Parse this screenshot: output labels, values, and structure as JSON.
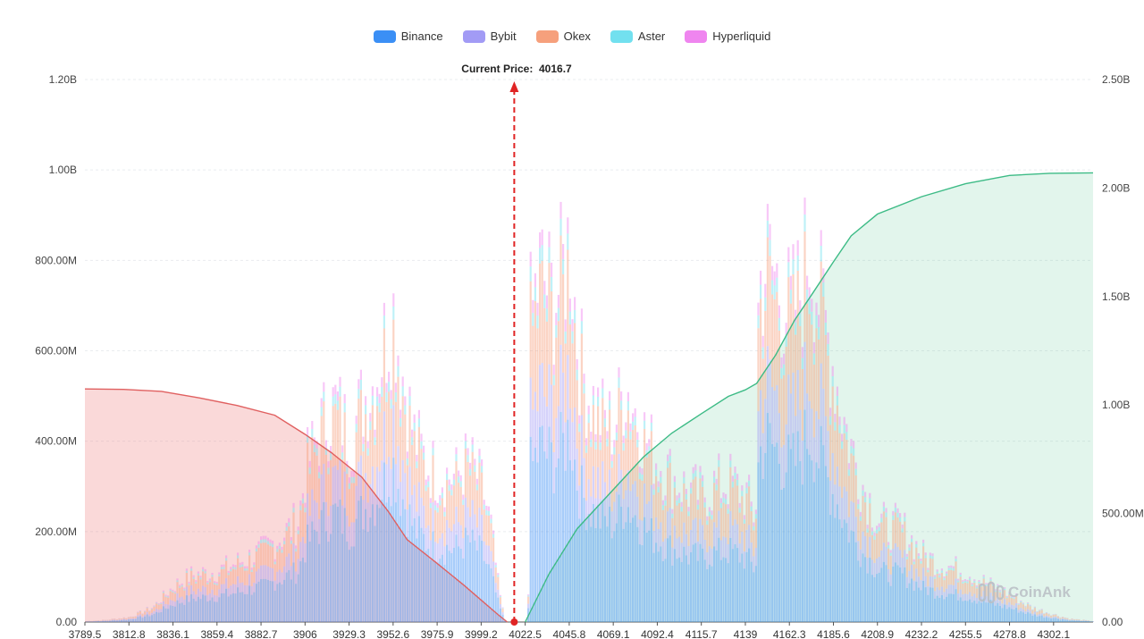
{
  "legend": [
    {
      "name": "Binance",
      "color": "#3b8ff5"
    },
    {
      "name": "Bybit",
      "color": "#a29bf5"
    },
    {
      "name": "Okex",
      "color": "#f6a07c"
    },
    {
      "name": "Aster",
      "color": "#72e0ef"
    },
    {
      "name": "Hyperliquid",
      "color": "#ef85ef"
    }
  ],
  "current_price": {
    "label": "Current Price:",
    "value": "4016.7"
  },
  "watermark": "CoinAnk",
  "chart_data": {
    "type": "bar",
    "title": "",
    "xlabel": "",
    "ylabel": "",
    "x_tick_labels": [
      "3789.5",
      "3812.8",
      "3836.1",
      "3859.4",
      "3882.7",
      "3906",
      "3929.3",
      "3952.6",
      "3975.9",
      "3999.2",
      "4022.5",
      "4045.8",
      "4069.1",
      "4092.4",
      "4115.7",
      "4139",
      "4162.3",
      "4185.6",
      "4208.9",
      "4232.2",
      "4255.5",
      "4278.8",
      "4302.1"
    ],
    "x_range": [
      3789.5,
      4323.0
    ],
    "current_price": 4016.7,
    "y_left": {
      "min": 0,
      "max": 1200000000,
      "ticks": [
        0,
        200000000,
        400000000,
        600000000,
        800000000,
        1000000000,
        1200000000
      ],
      "tick_labels": [
        "0.00",
        "200.00M",
        "400.00M",
        "600.00M",
        "800.00M",
        "1.00B",
        "1.20B"
      ]
    },
    "y_right": {
      "min": 0,
      "max": 2500000000,
      "ticks": [
        0,
        500000000,
        1000000000,
        1500000000,
        2000000000,
        2500000000
      ],
      "tick_labels": [
        "0.00",
        "500.00M",
        "1.00B",
        "1.50B",
        "2.00B",
        "2.50B"
      ]
    },
    "stacked_series": [
      "Binance",
      "Bybit",
      "Okex",
      "Aster",
      "Hyperliquid"
    ],
    "stack_shares": [
      0.5,
      0.16,
      0.26,
      0.04,
      0.04
    ],
    "bar_profile_millions": [
      [
        3789.5,
        2
      ],
      [
        3800,
        5
      ],
      [
        3812.8,
        12
      ],
      [
        3825,
        35
      ],
      [
        3836.1,
        85
      ],
      [
        3845,
        110
      ],
      [
        3859.4,
        120
      ],
      [
        3870,
        140
      ],
      [
        3882.7,
        165
      ],
      [
        3895,
        210
      ],
      [
        3902,
        240
      ],
      [
        3906,
        360
      ],
      [
        3915,
        470
      ],
      [
        3922,
        510
      ],
      [
        3929.3,
        430
      ],
      [
        3936,
        520
      ],
      [
        3942,
        560
      ],
      [
        3947,
        650
      ],
      [
        3950,
        700
      ],
      [
        3952.6,
        730
      ],
      [
        3956,
        610
      ],
      [
        3963,
        440
      ],
      [
        3970,
        370
      ],
      [
        3975.9,
        350
      ],
      [
        3985,
        340
      ],
      [
        3992,
        380
      ],
      [
        3999.2,
        320
      ],
      [
        4004,
        220
      ],
      [
        4008,
        80
      ],
      [
        4011,
        8
      ],
      [
        4012,
        0
      ],
      [
        4023.5,
        0
      ],
      [
        4024.5,
        700
      ],
      [
        4030,
        820
      ],
      [
        4036,
        760
      ],
      [
        4040,
        780
      ],
      [
        4045.8,
        900
      ],
      [
        4050,
        640
      ],
      [
        4055,
        540
      ],
      [
        4062,
        480
      ],
      [
        4069.1,
        460
      ],
      [
        4075,
        560
      ],
      [
        4080,
        500
      ],
      [
        4086,
        430
      ],
      [
        4092.4,
        380
      ],
      [
        4100,
        340
      ],
      [
        4108,
        310
      ],
      [
        4115.7,
        300
      ],
      [
        4122,
        320
      ],
      [
        4130,
        330
      ],
      [
        4139,
        300
      ],
      [
        4144,
        240
      ],
      [
        4145.5,
        780
      ],
      [
        4150,
        850
      ],
      [
        4155,
        800
      ],
      [
        4162.3,
        720
      ],
      [
        4168,
        780
      ],
      [
        4172,
        900
      ],
      [
        4178,
        760
      ],
      [
        4185.6,
        590
      ],
      [
        4192,
        450
      ],
      [
        4200,
        330
      ],
      [
        4208.9,
        240
      ],
      [
        4215,
        220
      ],
      [
        4220,
        230
      ],
      [
        4232.2,
        160
      ],
      [
        4240,
        140
      ],
      [
        4255.5,
        120
      ],
      [
        4265,
        95
      ],
      [
        4278.8,
        65
      ],
      [
        4290,
        35
      ],
      [
        4302.1,
        18
      ],
      [
        4310,
        8
      ],
      [
        4323,
        2
      ]
    ],
    "cumulative_short": {
      "name": "Cumulative (left side)",
      "color": "#e06060",
      "points": [
        [
          3789.5,
          1074
        ],
        [
          3810,
          1072
        ],
        [
          3830,
          1063
        ],
        [
          3850,
          1033
        ],
        [
          3870,
          998
        ],
        [
          3890,
          953
        ],
        [
          3906,
          865
        ],
        [
          3920,
          780
        ],
        [
          3936,
          668
        ],
        [
          3950,
          510
        ],
        [
          3960,
          380
        ],
        [
          3975.9,
          270
        ],
        [
          3990,
          170
        ],
        [
          4000,
          95
        ],
        [
          4008,
          35
        ],
        [
          4013,
          0
        ]
      ]
    },
    "cumulative_long": {
      "name": "Cumulative (right side)",
      "color": "#3dbb86",
      "points": [
        [
          4022.5,
          0
        ],
        [
          4035,
          220
        ],
        [
          4050,
          430
        ],
        [
          4069.1,
          610
        ],
        [
          4085,
          760
        ],
        [
          4100,
          870
        ],
        [
          4115.7,
          960
        ],
        [
          4130,
          1040
        ],
        [
          4139,
          1070
        ],
        [
          4145,
          1100
        ],
        [
          4155,
          1230
        ],
        [
          4165,
          1390
        ],
        [
          4175,
          1520
        ],
        [
          4185.6,
          1660
        ],
        [
          4195,
          1780
        ],
        [
          4208.9,
          1880
        ],
        [
          4232.2,
          1960
        ],
        [
          4255.5,
          2020
        ],
        [
          4278.8,
          2058
        ],
        [
          4300,
          2068
        ],
        [
          4323,
          2070
        ]
      ]
    }
  }
}
